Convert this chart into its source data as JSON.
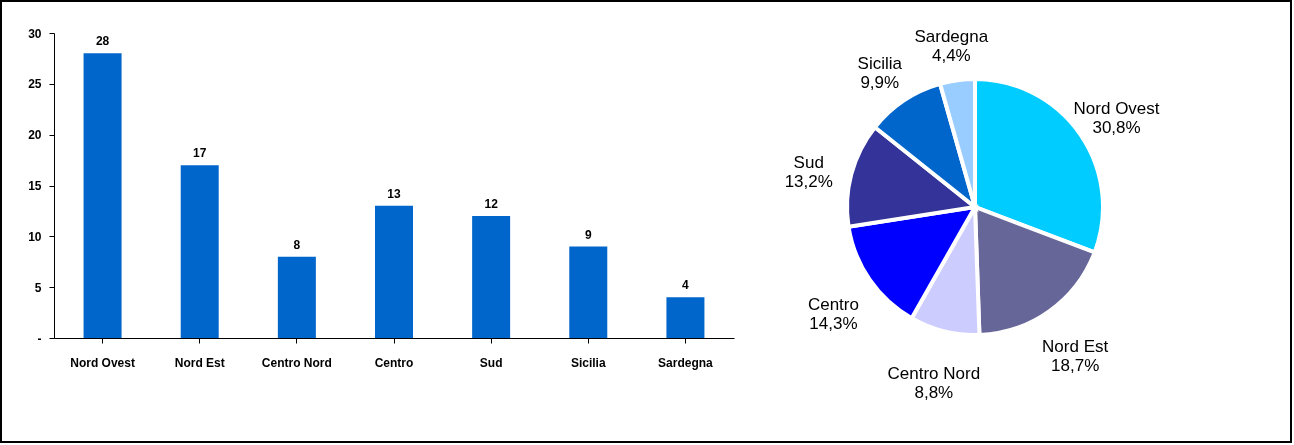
{
  "chart_data": [
    {
      "type": "bar",
      "categories": [
        "Nord Ovest",
        "Nord Est",
        "Centro Nord",
        "Centro",
        "Sud",
        "Sicilia",
        "Sardegna"
      ],
      "values": [
        28,
        17,
        8,
        13,
        12,
        9,
        4
      ],
      "color": "#0066cc",
      "ylim": [
        0,
        30
      ],
      "yticks": [
        {
          "value": 0,
          "label": "-"
        },
        5,
        10,
        15,
        20,
        25,
        30
      ],
      "data_labels": true
    },
    {
      "type": "pie",
      "categories": [
        "Nord Ovest",
        "Nord Est",
        "Centro Nord",
        "Centro",
        "Sud",
        "Sicilia",
        "Sardegna"
      ],
      "values": [
        30.8,
        18.7,
        8.8,
        14.3,
        13.2,
        9.9,
        4.4
      ],
      "value_labels": [
        "30,8%",
        "18,7%",
        "8,8%",
        "14,3%",
        "13,2%",
        "9,9%",
        "4,4%"
      ],
      "colors": [
        "#00ccff",
        "#666699",
        "#ccccff",
        "#0000ff",
        "#333399",
        "#0066cc",
        "#99ccff"
      ]
    }
  ]
}
